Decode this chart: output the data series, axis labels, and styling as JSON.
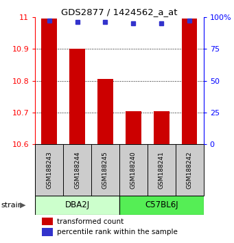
{
  "title": "GDS2877 / 1424562_a_at",
  "samples": [
    "GSM188243",
    "GSM188244",
    "GSM188245",
    "GSM188240",
    "GSM188241",
    "GSM188242"
  ],
  "bar_values": [
    10.995,
    10.9,
    10.805,
    10.705,
    10.705,
    10.995
  ],
  "bar_bottom": 10.6,
  "percentile_values": [
    97,
    96,
    96,
    95,
    95,
    97
  ],
  "ylim_left": [
    10.6,
    11.0
  ],
  "ylim_right": [
    0,
    100
  ],
  "yticks_left": [
    10.6,
    10.7,
    10.8,
    10.9,
    11.0
  ],
  "ytick_labels_left": [
    "10.6",
    "10.7",
    "10.8",
    "10.9",
    "11"
  ],
  "yticks_right": [
    0,
    25,
    50,
    75,
    100
  ],
  "ytick_labels_right": [
    "0",
    "25",
    "50",
    "75",
    "100%"
  ],
  "bar_color": "#cc0000",
  "dot_color": "#3333cc",
  "group1_label": "DBA2J",
  "group2_label": "C57BL6J",
  "group1_color": "#ccffcc",
  "group2_color": "#55ee55",
  "group1_indices": [
    0,
    1,
    2
  ],
  "group2_indices": [
    3,
    4,
    5
  ],
  "strain_label": "strain",
  "legend_bar_label": "transformed count",
  "legend_dot_label": "percentile rank within the sample",
  "bg_color": "#ffffff",
  "label_area_color": "#cccccc",
  "grid_yticks": [
    10.7,
    10.8,
    10.9
  ]
}
